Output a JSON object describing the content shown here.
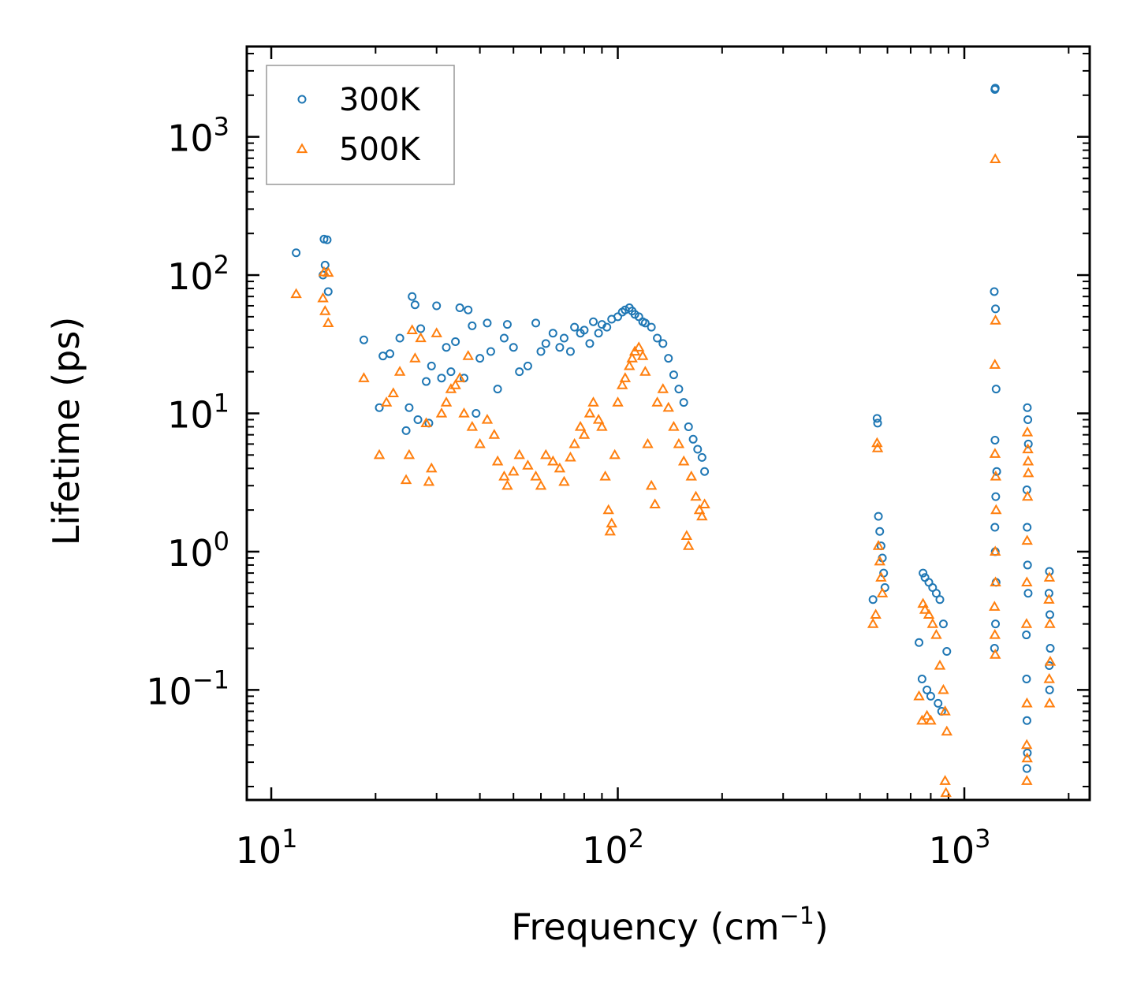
{
  "chart_data": {
    "type": "scatter",
    "title": "",
    "xlabel": "Frequency (cm",
    "xlabel_sup": "−1",
    "xlabel_end": ")",
    "ylabel": "Lifetime (ps)",
    "xscale": "log",
    "yscale": "log",
    "xlim": [
      8.5,
      2300
    ],
    "ylim": [
      0.016,
      4500
    ],
    "x_ticks": [
      {
        "value": 10,
        "base": "10",
        "exp": "1"
      },
      {
        "value": 100,
        "base": "10",
        "exp": "2"
      },
      {
        "value": 1000,
        "base": "10",
        "exp": "3"
      }
    ],
    "y_ticks": [
      {
        "value": 0.1,
        "base": "10",
        "exp": "−1"
      },
      {
        "value": 1,
        "base": "10",
        "exp": "0"
      },
      {
        "value": 10,
        "base": "10",
        "exp": "1"
      },
      {
        "value": 100,
        "base": "10",
        "exp": "2"
      },
      {
        "value": 1000,
        "base": "10",
        "exp": "3"
      }
    ],
    "legend_position": "top-left",
    "series": [
      {
        "name": "300K",
        "marker": "circle",
        "color": "#1f77b4",
        "points": [
          [
            11.8,
            145
          ],
          [
            14.2,
            182
          ],
          [
            14.5,
            180
          ],
          [
            14.3,
            118
          ],
          [
            14.1,
            100
          ],
          [
            14.6,
            76
          ],
          [
            18.5,
            34
          ],
          [
            20.5,
            11
          ],
          [
            21,
            26
          ],
          [
            22,
            27
          ],
          [
            23.5,
            35
          ],
          [
            24.5,
            7.5
          ],
          [
            25,
            11
          ],
          [
            25.5,
            70
          ],
          [
            26,
            61
          ],
          [
            26.5,
            9
          ],
          [
            27,
            41
          ],
          [
            28,
            17
          ],
          [
            28.5,
            8.5
          ],
          [
            29,
            22
          ],
          [
            30,
            60
          ],
          [
            31,
            18
          ],
          [
            32,
            30
          ],
          [
            33,
            20
          ],
          [
            34,
            33
          ],
          [
            35,
            58
          ],
          [
            36,
            18
          ],
          [
            37,
            56
          ],
          [
            38,
            43
          ],
          [
            39,
            10
          ],
          [
            40,
            25
          ],
          [
            42,
            45
          ],
          [
            43,
            28
          ],
          [
            45,
            15
          ],
          [
            47,
            35
          ],
          [
            48,
            44
          ],
          [
            50,
            30
          ],
          [
            52,
            20
          ],
          [
            55,
            22
          ],
          [
            58,
            45
          ],
          [
            60,
            28
          ],
          [
            62,
            32
          ],
          [
            65,
            38
          ],
          [
            68,
            30
          ],
          [
            70,
            35
          ],
          [
            73,
            28
          ],
          [
            75,
            42
          ],
          [
            78,
            38
          ],
          [
            80,
            40
          ],
          [
            83,
            32
          ],
          [
            85,
            46
          ],
          [
            88,
            38
          ],
          [
            90,
            44
          ],
          [
            93,
            42
          ],
          [
            96,
            48
          ],
          [
            100,
            50
          ],
          [
            103,
            54
          ],
          [
            105,
            56
          ],
          [
            108,
            58
          ],
          [
            110,
            55
          ],
          [
            112,
            52
          ],
          [
            115,
            50
          ],
          [
            118,
            46
          ],
          [
            120,
            45
          ],
          [
            125,
            42
          ],
          [
            130,
            35
          ],
          [
            135,
            32
          ],
          [
            140,
            25
          ],
          [
            145,
            19
          ],
          [
            150,
            15
          ],
          [
            155,
            12
          ],
          [
            160,
            8
          ],
          [
            165,
            6.5
          ],
          [
            170,
            5.5
          ],
          [
            175,
            4.8
          ],
          [
            178,
            3.8
          ],
          [
            560,
            9.2
          ],
          [
            562,
            8.5
          ],
          [
            565,
            1.8
          ],
          [
            570,
            1.4
          ],
          [
            575,
            1.1
          ],
          [
            580,
            0.9
          ],
          [
            585,
            0.7
          ],
          [
            590,
            0.55
          ],
          [
            545,
            0.45
          ],
          [
            760,
            0.7
          ],
          [
            770,
            0.65
          ],
          [
            790,
            0.6
          ],
          [
            810,
            0.55
          ],
          [
            830,
            0.5
          ],
          [
            850,
            0.45
          ],
          [
            870,
            0.3
          ],
          [
            890,
            0.19
          ],
          [
            740,
            0.22
          ],
          [
            755,
            0.12
          ],
          [
            780,
            0.1
          ],
          [
            800,
            0.09
          ],
          [
            840,
            0.08
          ],
          [
            860,
            0.07
          ],
          [
            1225,
            2200
          ],
          [
            1228,
            2250
          ],
          [
            1220,
            76
          ],
          [
            1230,
            57
          ],
          [
            1235,
            15
          ],
          [
            1226,
            6.4
          ],
          [
            1240,
            3.8
          ],
          [
            1232,
            2.5
          ],
          [
            1225,
            1.5
          ],
          [
            1228,
            1
          ],
          [
            1235,
            0.6
          ],
          [
            1230,
            0.3
          ],
          [
            1222,
            0.2
          ],
          [
            1520,
            11
          ],
          [
            1525,
            9
          ],
          [
            1530,
            6
          ],
          [
            1515,
            2.8
          ],
          [
            1518,
            1.5
          ],
          [
            1522,
            0.8
          ],
          [
            1528,
            0.5
          ],
          [
            1510,
            0.25
          ],
          [
            1512,
            0.12
          ],
          [
            1516,
            0.06
          ],
          [
            1520,
            0.035
          ],
          [
            1515,
            0.027
          ],
          [
            1760,
            0.72
          ],
          [
            1755,
            0.5
          ],
          [
            1765,
            0.35
          ],
          [
            1770,
            0.2
          ],
          [
            1758,
            0.15
          ],
          [
            1762,
            0.1
          ]
        ]
      },
      {
        "name": "500K",
        "marker": "triangle",
        "color": "#ff7f0e",
        "points": [
          [
            11.8,
            73
          ],
          [
            14.2,
            105
          ],
          [
            14.6,
            104
          ],
          [
            14.1,
            68
          ],
          [
            14.3,
            55
          ],
          [
            14.6,
            45
          ],
          [
            18.5,
            18
          ],
          [
            20.5,
            5
          ],
          [
            21.5,
            12
          ],
          [
            22.5,
            14
          ],
          [
            23.5,
            20
          ],
          [
            24.5,
            3.3
          ],
          [
            25,
            5
          ],
          [
            25.5,
            40
          ],
          [
            26,
            25
          ],
          [
            27,
            35
          ],
          [
            28,
            8.5
          ],
          [
            28.5,
            3.2
          ],
          [
            29,
            4
          ],
          [
            30,
            38
          ],
          [
            31,
            10
          ],
          [
            32,
            12
          ],
          [
            33,
            15
          ],
          [
            34,
            16
          ],
          [
            35,
            18
          ],
          [
            36,
            10
          ],
          [
            37,
            26
          ],
          [
            38,
            8
          ],
          [
            40,
            6
          ],
          [
            42,
            9
          ],
          [
            44,
            7
          ],
          [
            45,
            4.5
          ],
          [
            47,
            3.5
          ],
          [
            48,
            3
          ],
          [
            50,
            3.8
          ],
          [
            52,
            5
          ],
          [
            55,
            4.2
          ],
          [
            58,
            3.5
          ],
          [
            60,
            3
          ],
          [
            62,
            5
          ],
          [
            65,
            4.5
          ],
          [
            68,
            4
          ],
          [
            70,
            3.2
          ],
          [
            73,
            4.8
          ],
          [
            75,
            6
          ],
          [
            78,
            8
          ],
          [
            80,
            7
          ],
          [
            83,
            10
          ],
          [
            85,
            12
          ],
          [
            88,
            9
          ],
          [
            90,
            8
          ],
          [
            92,
            3.5
          ],
          [
            94,
            2
          ],
          [
            95,
            1.4
          ],
          [
            96,
            1.6
          ],
          [
            98,
            5
          ],
          [
            100,
            12
          ],
          [
            103,
            16
          ],
          [
            105,
            18
          ],
          [
            108,
            22
          ],
          [
            110,
            25
          ],
          [
            112,
            28
          ],
          [
            115,
            30
          ],
          [
            118,
            26
          ],
          [
            120,
            20
          ],
          [
            122,
            6
          ],
          [
            125,
            3
          ],
          [
            128,
            2.2
          ],
          [
            130,
            12
          ],
          [
            135,
            15
          ],
          [
            140,
            11
          ],
          [
            145,
            8
          ],
          [
            150,
            6
          ],
          [
            155,
            4.5
          ],
          [
            158,
            1.3
          ],
          [
            160,
            1.1
          ],
          [
            163,
            3.5
          ],
          [
            168,
            2.5
          ],
          [
            172,
            2
          ],
          [
            175,
            1.8
          ],
          [
            178,
            2.2
          ],
          [
            560,
            6.1
          ],
          [
            562,
            5.6
          ],
          [
            565,
            1.1
          ],
          [
            570,
            0.85
          ],
          [
            575,
            0.65
          ],
          [
            580,
            0.5
          ],
          [
            545,
            0.3
          ],
          [
            555,
            0.35
          ],
          [
            760,
            0.42
          ],
          [
            770,
            0.38
          ],
          [
            790,
            0.35
          ],
          [
            810,
            0.3
          ],
          [
            830,
            0.25
          ],
          [
            850,
            0.15
          ],
          [
            870,
            0.1
          ],
          [
            880,
            0.07
          ],
          [
            890,
            0.05
          ],
          [
            740,
            0.09
          ],
          [
            755,
            0.06
          ],
          [
            780,
            0.065
          ],
          [
            800,
            0.06
          ],
          [
            880,
            0.022
          ],
          [
            885,
            0.018
          ],
          [
            1228,
            690
          ],
          [
            1230,
            47
          ],
          [
            1225,
            22.5
          ],
          [
            1226,
            5.1
          ],
          [
            1232,
            3.5
          ],
          [
            1235,
            2
          ],
          [
            1228,
            1
          ],
          [
            1230,
            0.6
          ],
          [
            1222,
            0.4
          ],
          [
            1225,
            0.25
          ],
          [
            1228,
            0.18
          ],
          [
            1520,
            7.3
          ],
          [
            1525,
            5.5
          ],
          [
            1528,
            4.5
          ],
          [
            1530,
            3.7
          ],
          [
            1522,
            2.5
          ],
          [
            1518,
            1.2
          ],
          [
            1515,
            0.6
          ],
          [
            1512,
            0.3
          ],
          [
            1516,
            0.08
          ],
          [
            1514,
            0.04
          ],
          [
            1518,
            0.032
          ],
          [
            1515,
            0.022
          ],
          [
            1760,
            0.65
          ],
          [
            1755,
            0.45
          ],
          [
            1765,
            0.3
          ],
          [
            1770,
            0.16
          ],
          [
            1758,
            0.12
          ],
          [
            1762,
            0.08
          ]
        ]
      }
    ]
  }
}
